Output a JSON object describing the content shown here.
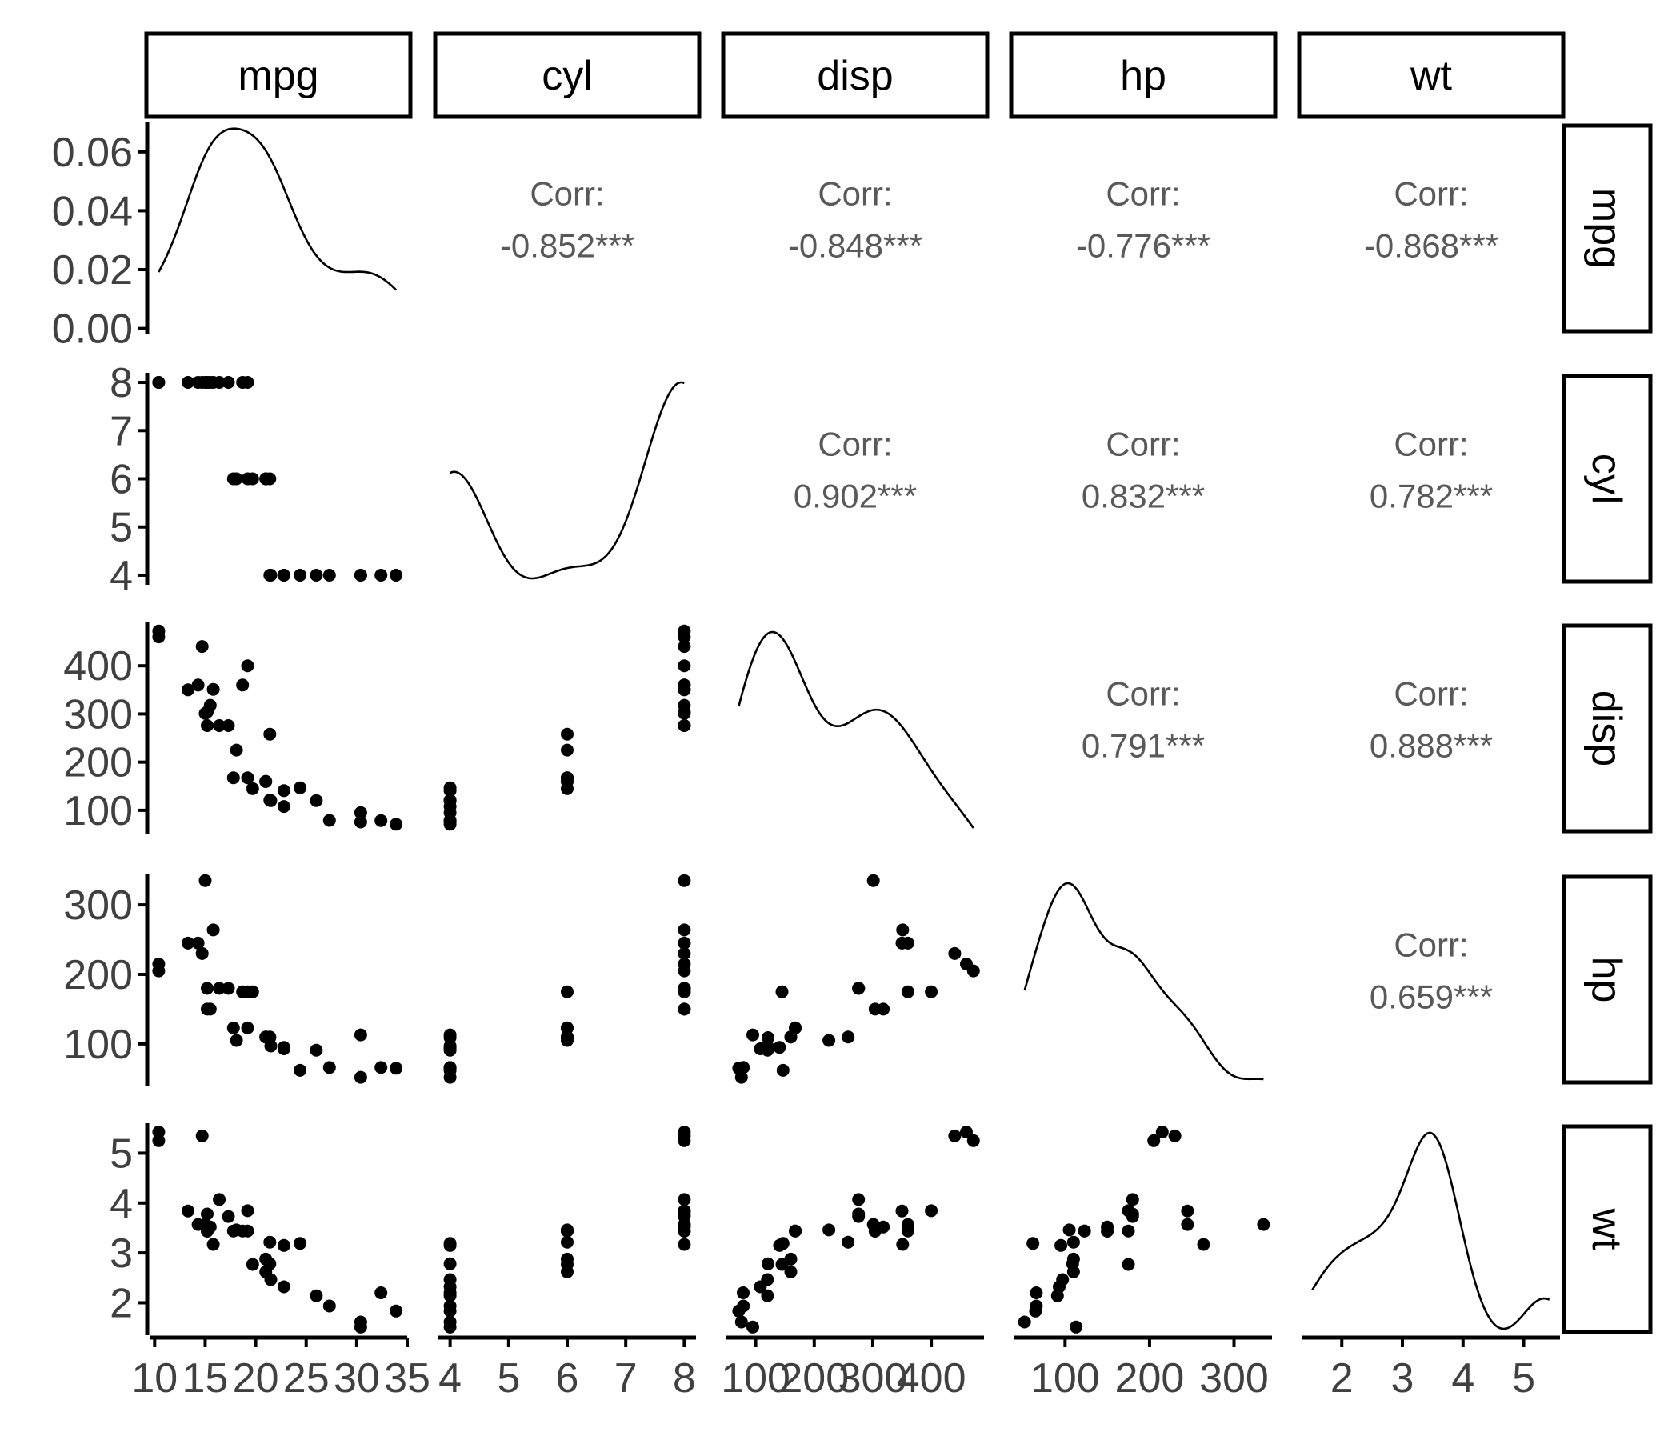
{
  "chart_data": {
    "type": "scatter",
    "variables": [
      "mpg",
      "cyl",
      "disp",
      "hp",
      "wt"
    ],
    "axes": {
      "mpg": {
        "lim": [
          9.5,
          35.0
        ],
        "ticks": [
          10,
          15,
          20,
          25,
          30,
          35
        ],
        "tick_labels": [
          "10",
          "15",
          "20",
          "25",
          "30",
          "35"
        ]
      },
      "cyl": {
        "lim": [
          3.8,
          8.2
        ],
        "ticks": [
          4,
          5,
          6,
          7,
          8
        ],
        "tick_labels": [
          "4",
          "5",
          "6",
          "7",
          "8"
        ]
      },
      "disp": {
        "lim": [
          50,
          490
        ],
        "ticks": [
          100,
          200,
          300,
          400
        ],
        "tick_labels": [
          "100",
          "200",
          "300",
          "400"
        ]
      },
      "hp": {
        "lim": [
          40,
          345
        ],
        "ticks": [
          100,
          200,
          300
        ],
        "tick_labels": [
          "100",
          "200",
          "300"
        ]
      },
      "wt": {
        "lim": [
          1.35,
          5.6
        ],
        "ticks": [
          2,
          3,
          4,
          5
        ],
        "tick_labels": [
          "2",
          "3",
          "4",
          "5"
        ]
      }
    },
    "density_axis": {
      "lim": [
        -0.002,
        0.07
      ],
      "ticks": [
        0,
        0.02,
        0.04,
        0.06
      ],
      "tick_labels": [
        "0.00",
        "0.02",
        "0.04",
        "0.06"
      ]
    },
    "correlations": [
      {
        "row": "mpg",
        "col": "cyl",
        "label": "Corr:",
        "value": "-0.852***"
      },
      {
        "row": "mpg",
        "col": "disp",
        "label": "Corr:",
        "value": "-0.848***"
      },
      {
        "row": "mpg",
        "col": "hp",
        "label": "Corr:",
        "value": "-0.776***"
      },
      {
        "row": "mpg",
        "col": "wt",
        "label": "Corr:",
        "value": "-0.868***"
      },
      {
        "row": "cyl",
        "col": "disp",
        "label": "Corr:",
        "value": "0.902***"
      },
      {
        "row": "cyl",
        "col": "hp",
        "label": "Corr:",
        "value": "0.832***"
      },
      {
        "row": "cyl",
        "col": "wt",
        "label": "Corr:",
        "value": "0.782***"
      },
      {
        "row": "disp",
        "col": "hp",
        "label": "Corr:",
        "value": "0.791***"
      },
      {
        "row": "disp",
        "col": "wt",
        "label": "Corr:",
        "value": "0.888***"
      },
      {
        "row": "hp",
        "col": "wt",
        "label": "Corr:",
        "value": "0.659***"
      }
    ],
    "observations": {
      "mpg": [
        21.0,
        21.0,
        22.8,
        21.4,
        18.7,
        18.1,
        14.3,
        24.4,
        22.8,
        19.2,
        17.8,
        16.4,
        17.3,
        15.2,
        10.4,
        10.4,
        14.7,
        32.4,
        30.4,
        33.9,
        21.5,
        15.5,
        15.2,
        13.3,
        19.2,
        27.3,
        26.0,
        30.4,
        15.8,
        19.7,
        15.0,
        21.4
      ],
      "cyl": [
        6,
        6,
        4,
        6,
        8,
        6,
        8,
        4,
        4,
        6,
        6,
        8,
        8,
        8,
        8,
        8,
        8,
        4,
        4,
        4,
        4,
        8,
        8,
        8,
        8,
        4,
        4,
        4,
        8,
        6,
        8,
        4
      ],
      "disp": [
        160,
        160,
        108,
        258,
        360,
        225,
        360,
        146.7,
        140.8,
        167.6,
        167.6,
        275.8,
        275.8,
        275.8,
        472,
        460,
        440,
        78.7,
        75.7,
        71.1,
        120.1,
        318,
        304,
        350,
        400,
        79,
        120.3,
        95.1,
        351,
        145,
        301,
        121
      ],
      "hp": [
        110,
        110,
        93,
        110,
        175,
        105,
        245,
        62,
        95,
        123,
        123,
        180,
        180,
        180,
        205,
        215,
        230,
        66,
        52,
        65,
        97,
        150,
        150,
        245,
        175,
        66,
        91,
        113,
        264,
        175,
        335,
        109
      ],
      "wt": [
        2.62,
        2.875,
        2.32,
        3.215,
        3.44,
        3.46,
        3.57,
        3.19,
        3.15,
        3.44,
        3.44,
        4.07,
        3.73,
        3.78,
        5.25,
        5.424,
        5.345,
        2.2,
        1.615,
        1.835,
        2.465,
        3.52,
        3.435,
        3.84,
        3.845,
        1.935,
        2.14,
        1.513,
        3.17,
        2.77,
        3.57,
        2.78
      ]
    },
    "grid": false,
    "legend": "none"
  }
}
